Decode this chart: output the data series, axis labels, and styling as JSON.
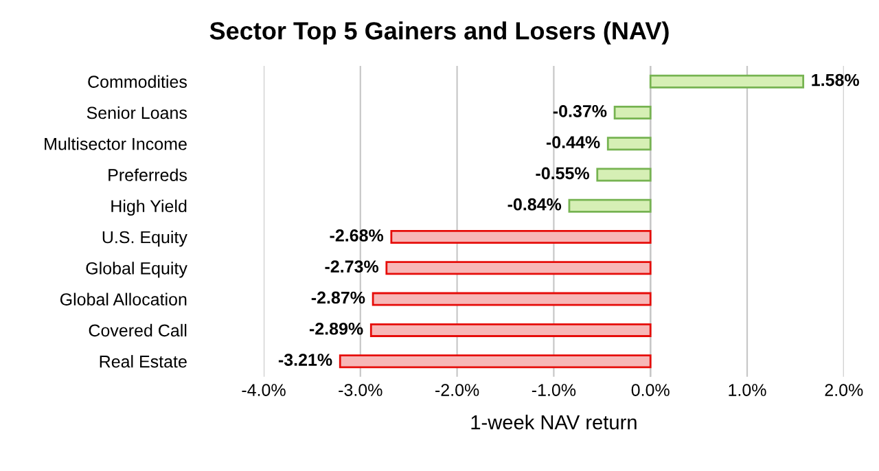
{
  "chart_data": {
    "type": "bar",
    "orientation": "horizontal",
    "title": "Sector Top 5 Gainers and Losers (NAV)",
    "xlabel": "1-week NAV return",
    "categories": [
      "Commodities",
      "Senior Loans",
      "Multisector Income",
      "Preferreds",
      "High Yield",
      "U.S. Equity",
      "Global Equity",
      "Global Allocation",
      "Covered Call",
      "Real Estate"
    ],
    "values": [
      1.58,
      -0.37,
      -0.44,
      -0.55,
      -0.84,
      -2.68,
      -2.73,
      -2.87,
      -2.89,
      -3.21
    ],
    "value_labels": [
      "1.58%",
      "-0.37%",
      "-0.44%",
      "-0.55%",
      "-0.84%",
      "-2.68%",
      "-2.73%",
      "-2.87%",
      "-2.89%",
      "-3.21%"
    ],
    "colors": [
      "#d6efb5",
      "#d6efb5",
      "#d6efb5",
      "#d6efb5",
      "#d6efb5",
      "#f7b7b7",
      "#f7b7b7",
      "#f7b7b7",
      "#f7b7b7",
      "#f7b7b7"
    ],
    "xlim": [
      -4,
      2
    ],
    "xticks": [
      {
        "value": -4,
        "label": "-4.0%"
      },
      {
        "value": -3,
        "label": "-3.0%"
      },
      {
        "value": -2,
        "label": "-2.0%"
      },
      {
        "value": -1,
        "label": "-1.0%"
      },
      {
        "value": 0,
        "label": "0.0%"
      },
      {
        "value": 1,
        "label": "1.0%"
      },
      {
        "value": 2,
        "label": "2.0%"
      }
    ],
    "grid": "x"
  }
}
